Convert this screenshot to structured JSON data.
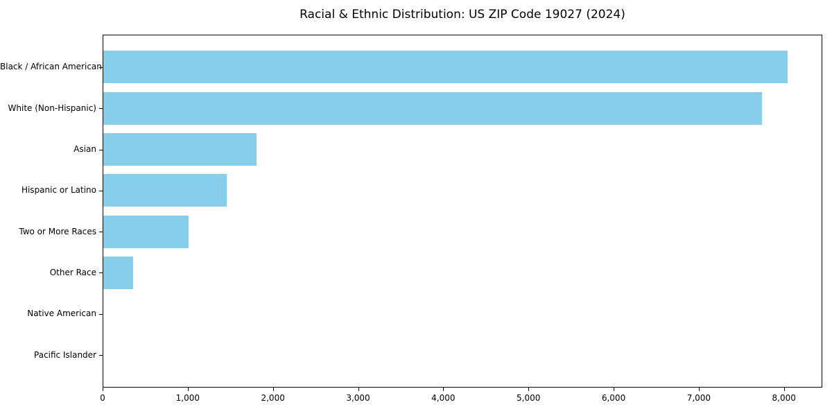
{
  "chart_data": {
    "type": "bar",
    "orientation": "horizontal",
    "title": "Racial & Ethnic Distribution: US ZIP Code 19027 (2024)",
    "xlabel": "",
    "ylabel": "",
    "categories": [
      "Black / African American",
      "White (Non-Hispanic)",
      "Asian",
      "Hispanic or Latino",
      "Two or More Races",
      "Other Race",
      "Native American",
      "Pacific Islander"
    ],
    "values": [
      8050,
      7750,
      1800,
      1450,
      1000,
      350,
      0,
      0
    ],
    "xlim": [
      0,
      8450
    ],
    "x_ticks": [
      0,
      1000,
      2000,
      3000,
      4000,
      5000,
      6000,
      7000,
      8000
    ],
    "x_tick_labels": [
      "0",
      "1,000",
      "2,000",
      "3,000",
      "4,000",
      "5,000",
      "6,000",
      "7,000",
      "8,000"
    ],
    "bar_color": "#87CEEB",
    "axis_color": "#000000",
    "text_color": "#000000",
    "background_color": "#ffffff",
    "grid": false
  }
}
